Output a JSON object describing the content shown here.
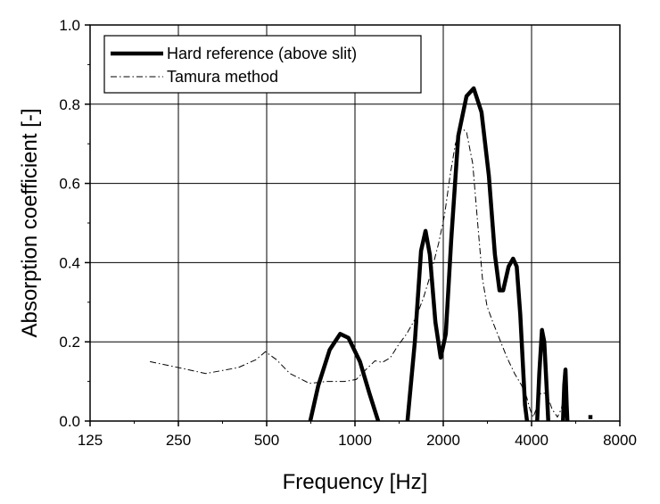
{
  "chart_data": {
    "type": "line",
    "xlabel": "Frequency [Hz]",
    "ylabel": "Absorption coefficient [-]",
    "x_scale": "log2",
    "xlim": [
      125,
      8000
    ],
    "ylim": [
      0.0,
      1.0
    ],
    "xticks": [
      125,
      250,
      500,
      1000,
      2000,
      4000,
      8000
    ],
    "xtick_labels": [
      "125",
      "250",
      "500",
      "1000",
      "2000",
      "4000",
      "8000"
    ],
    "yticks": [
      0.0,
      0.2,
      0.4,
      0.6,
      0.8,
      1.0
    ],
    "ytick_labels": [
      "0.0",
      "0.2",
      "0.4",
      "0.6",
      "0.8",
      "1.0"
    ],
    "grid": true,
    "legend_position": "top-left",
    "series": [
      {
        "name": "Hard reference (above slit)",
        "style": "solid-thick",
        "color": "#000000",
        "segments": [
          [
            [
              704,
              0.0
            ],
            [
              750,
              0.09
            ],
            [
              820,
              0.18
            ],
            [
              890,
              0.22
            ],
            [
              950,
              0.21
            ],
            [
              1040,
              0.15
            ],
            [
              1120,
              0.07
            ],
            [
              1200,
              0.0
            ]
          ],
          [
            [
              1510,
              0.0
            ],
            [
              1600,
              0.2
            ],
            [
              1680,
              0.43
            ],
            [
              1740,
              0.48
            ],
            [
              1800,
              0.42
            ],
            [
              1880,
              0.25
            ],
            [
              1960,
              0.16
            ],
            [
              2040,
              0.22
            ],
            [
              2130,
              0.46
            ],
            [
              2250,
              0.72
            ],
            [
              2400,
              0.82
            ],
            [
              2540,
              0.84
            ],
            [
              2700,
              0.78
            ],
            [
              2860,
              0.62
            ],
            [
              3000,
              0.42
            ],
            [
              3110,
              0.33
            ],
            [
              3200,
              0.33
            ],
            [
              3340,
              0.39
            ],
            [
              3460,
              0.41
            ],
            [
              3560,
              0.39
            ],
            [
              3660,
              0.27
            ],
            [
              3800,
              0.04
            ],
            [
              3860,
              0.0
            ]
          ],
          [
            [
              4180,
              0.0
            ],
            [
              4250,
              0.12
            ],
            [
              4340,
              0.23
            ],
            [
              4420,
              0.2
            ],
            [
              4520,
              0.06
            ],
            [
              4560,
              0.0
            ]
          ],
          [
            [
              5120,
              0.0
            ],
            [
              5170,
              0.09
            ],
            [
              5220,
              0.13
            ],
            [
              5270,
              0.04
            ],
            [
              5300,
              0.0
            ]
          ],
          [
            [
              6250,
              0.01
            ],
            [
              6450,
              0.01
            ]
          ]
        ]
      },
      {
        "name": "Tamura method",
        "style": "dash-dot-thin",
        "color": "#000000",
        "segments": [
          [
            [
              200,
              0.15
            ],
            [
              250,
              0.135
            ],
            [
              310,
              0.12
            ],
            [
              400,
              0.135
            ],
            [
              460,
              0.155
            ],
            [
              495,
              0.175
            ],
            [
              540,
              0.155
            ],
            [
              600,
              0.12
            ],
            [
              700,
              0.095
            ],
            [
              800,
              0.1
            ],
            [
              920,
              0.1
            ],
            [
              1010,
              0.105
            ],
            [
              1090,
              0.13
            ],
            [
              1170,
              0.152
            ],
            [
              1240,
              0.148
            ],
            [
              1320,
              0.16
            ],
            [
              1400,
              0.19
            ],
            [
              1500,
              0.22
            ],
            [
              1610,
              0.26
            ],
            [
              1710,
              0.31
            ],
            [
              1810,
              0.37
            ],
            [
              1930,
              0.45
            ],
            [
              2020,
              0.52
            ],
            [
              2110,
              0.62
            ],
            [
              2200,
              0.7
            ],
            [
              2300,
              0.74
            ],
            [
              2400,
              0.73
            ],
            [
              2520,
              0.65
            ],
            [
              2620,
              0.5
            ],
            [
              2720,
              0.36
            ],
            [
              2820,
              0.29
            ],
            [
              2950,
              0.25
            ],
            [
              3100,
              0.21
            ],
            [
              3300,
              0.16
            ],
            [
              3500,
              0.12
            ],
            [
              3700,
              0.09
            ],
            [
              3850,
              0.06
            ],
            [
              3950,
              0.03
            ],
            [
              4050,
              0.01
            ],
            [
              4150,
              0.03
            ],
            [
              4300,
              0.07
            ],
            [
              4500,
              0.07
            ],
            [
              4700,
              0.03
            ],
            [
              4900,
              0.01
            ],
            [
              5050,
              0.03
            ],
            [
              5150,
              0.06
            ],
            [
              5250,
              0.04
            ],
            [
              5350,
              0.0
            ]
          ]
        ]
      }
    ]
  }
}
